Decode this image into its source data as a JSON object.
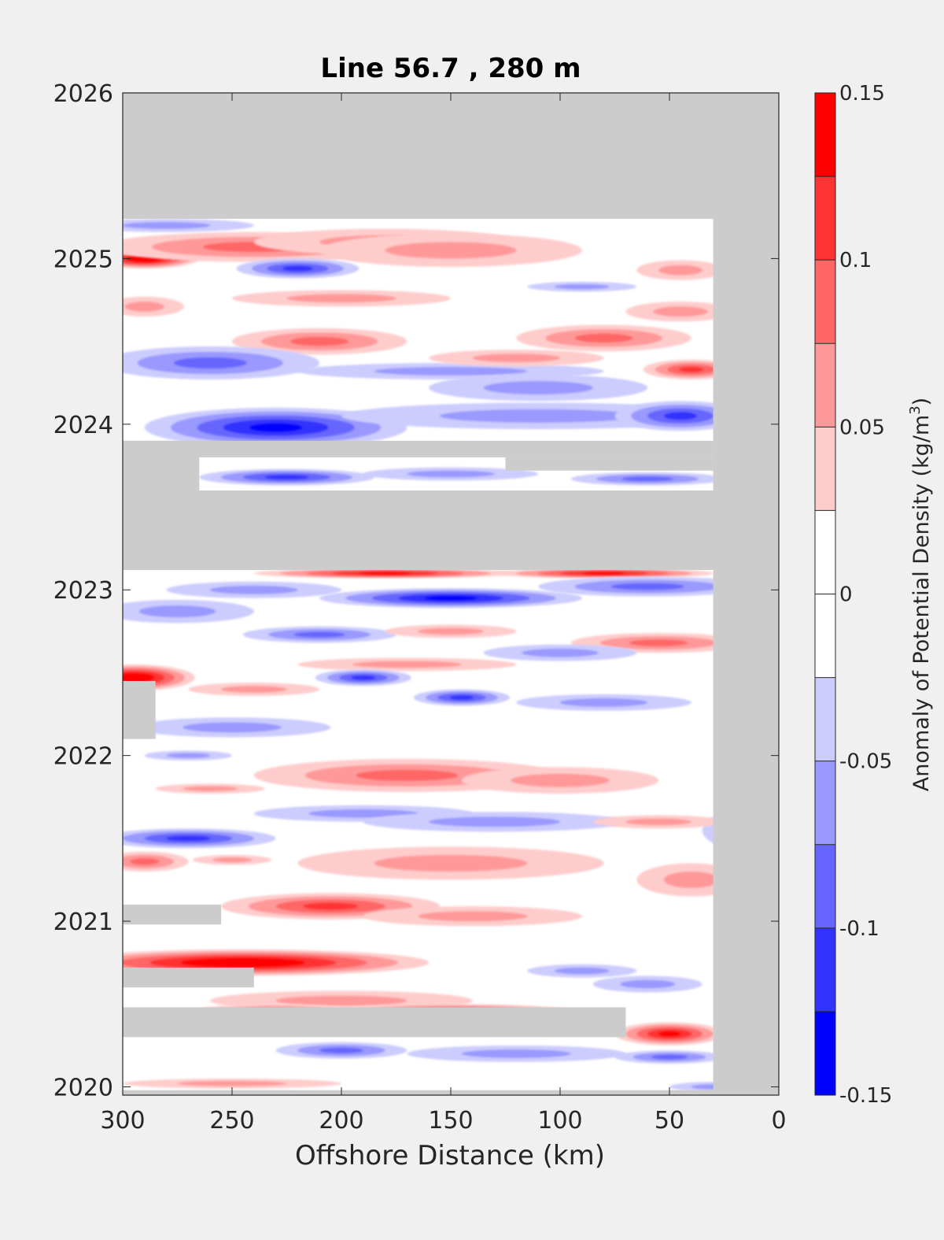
{
  "chart_data": {
    "type": "heatmap",
    "title": "Line 56.7 , 280 m",
    "xlabel": "Offshore Distance (km)",
    "ylabel": "",
    "xlim": [
      300,
      0
    ],
    "ylim": [
      2019.95,
      2026
    ],
    "x_reversed": true,
    "x_ticks": [
      "300",
      "250",
      "200",
      "150",
      "100",
      "50",
      "0"
    ],
    "x_tick_values": [
      300,
      250,
      200,
      150,
      100,
      50,
      0
    ],
    "y_ticks": [
      "2020",
      "2021",
      "2022",
      "2023",
      "2024",
      "2025",
      "2026"
    ],
    "y_tick_values": [
      2020,
      2021,
      2022,
      2023,
      2024,
      2025,
      2026
    ],
    "colorbar": {
      "label": "Anomaly of Potential Density (kg/m3)",
      "label_main": "Anomaly of Potential Density (kg/m",
      "label_sup": "3",
      "label_end": ")",
      "range": [
        -0.15,
        0.15
      ],
      "tick_labels": [
        "0.15",
        "0.1",
        "0.05",
        "0",
        "-0.05",
        "-0.1",
        "-0.15"
      ],
      "tick_values": [
        0.15,
        0.1,
        0.05,
        0,
        -0.05,
        -0.1,
        -0.15
      ],
      "levels": [
        {
          "min": 0.125,
          "max": 0.15,
          "color": "#ff0000"
        },
        {
          "min": 0.1,
          "max": 0.125,
          "color": "#ff3333"
        },
        {
          "min": 0.075,
          "max": 0.1,
          "color": "#ff6666"
        },
        {
          "min": 0.05,
          "max": 0.075,
          "color": "#ff9999"
        },
        {
          "min": 0.025,
          "max": 0.05,
          "color": "#ffcccc"
        },
        {
          "min": 0,
          "max": 0.025,
          "color": "#ffffff"
        },
        {
          "min": -0.025,
          "max": 0,
          "color": "#ffffff"
        },
        {
          "min": -0.05,
          "max": -0.025,
          "color": "#ccccff"
        },
        {
          "min": -0.075,
          "max": -0.05,
          "color": "#9999ff"
        },
        {
          "min": -0.1,
          "max": -0.075,
          "color": "#6666ff"
        },
        {
          "min": -0.125,
          "max": -0.1,
          "color": "#3333ff"
        },
        {
          "min": -0.15,
          "max": -0.125,
          "color": "#0000ff"
        }
      ]
    },
    "no_data_color": "#cccccc",
    "grid": false,
    "features": [
      {
        "x": 290,
        "y": 2025.0,
        "dx": 25,
        "dy": 0.06,
        "v": 0.14
      },
      {
        "x": 240,
        "y": 2025.07,
        "dx": 70,
        "dy": 0.09,
        "v": 0.08
      },
      {
        "x": 180,
        "y": 2025.1,
        "dx": 60,
        "dy": 0.08,
        "v": 0.06
      },
      {
        "x": 150,
        "y": 2025.05,
        "dx": 60,
        "dy": 0.1,
        "v": 0.05
      },
      {
        "x": 280,
        "y": 2025.2,
        "dx": 40,
        "dy": 0.04,
        "v": -0.06
      },
      {
        "x": 220,
        "y": 2024.94,
        "dx": 28,
        "dy": 0.06,
        "v": -0.09
      },
      {
        "x": 90,
        "y": 2024.83,
        "dx": 25,
        "dy": 0.03,
        "v": -0.04
      },
      {
        "x": 45,
        "y": 2024.93,
        "dx": 20,
        "dy": 0.06,
        "v": 0.05
      },
      {
        "x": 290,
        "y": 2024.71,
        "dx": 18,
        "dy": 0.06,
        "v": 0.04
      },
      {
        "x": 200,
        "y": 2024.76,
        "dx": 50,
        "dy": 0.05,
        "v": 0.04
      },
      {
        "x": 210,
        "y": 2024.5,
        "dx": 40,
        "dy": 0.08,
        "v": 0.08
      },
      {
        "x": 80,
        "y": 2024.52,
        "dx": 40,
        "dy": 0.08,
        "v": 0.07
      },
      {
        "x": 45,
        "y": 2024.68,
        "dx": 25,
        "dy": 0.06,
        "v": 0.05
      },
      {
        "x": 40,
        "y": 2024.33,
        "dx": 22,
        "dy": 0.06,
        "v": 0.09
      },
      {
        "x": 260,
        "y": 2024.37,
        "dx": 50,
        "dy": 0.1,
        "v": -0.07
      },
      {
        "x": 150,
        "y": 2024.32,
        "dx": 70,
        "dy": 0.05,
        "v": -0.04
      },
      {
        "x": 110,
        "y": 2024.22,
        "dx": 50,
        "dy": 0.08,
        "v": -0.06
      },
      {
        "x": 120,
        "y": 2024.4,
        "dx": 40,
        "dy": 0.05,
        "v": 0.05
      },
      {
        "x": 230,
        "y": 2023.98,
        "dx": 60,
        "dy": 0.12,
        "v": -0.13
      },
      {
        "x": 110,
        "y": 2024.05,
        "dx": 90,
        "dy": 0.08,
        "v": -0.06
      },
      {
        "x": 45,
        "y": 2024.05,
        "dx": 30,
        "dy": 0.09,
        "v": -0.1
      },
      {
        "x": 225,
        "y": 2023.68,
        "dx": 40,
        "dy": 0.05,
        "v": -0.11
      },
      {
        "x": 60,
        "y": 2023.67,
        "dx": 35,
        "dy": 0.04,
        "v": -0.08
      },
      {
        "x": 150,
        "y": 2023.7,
        "dx": 40,
        "dy": 0.04,
        "v": -0.05
      },
      {
        "x": 180,
        "y": 2023.1,
        "dx": 60,
        "dy": 0.03,
        "v": 0.12
      },
      {
        "x": 80,
        "y": 2023.1,
        "dx": 50,
        "dy": 0.03,
        "v": 0.12
      },
      {
        "x": 150,
        "y": 2022.95,
        "dx": 60,
        "dy": 0.06,
        "v": -0.12
      },
      {
        "x": 60,
        "y": 2023.02,
        "dx": 50,
        "dy": 0.06,
        "v": -0.07
      },
      {
        "x": 240,
        "y": 2023.0,
        "dx": 40,
        "dy": 0.05,
        "v": -0.05
      },
      {
        "x": 275,
        "y": 2022.87,
        "dx": 35,
        "dy": 0.07,
        "v": -0.06
      },
      {
        "x": 210,
        "y": 2022.73,
        "dx": 35,
        "dy": 0.05,
        "v": -0.07
      },
      {
        "x": 150,
        "y": 2022.75,
        "dx": 30,
        "dy": 0.04,
        "v": 0.05
      },
      {
        "x": 55,
        "y": 2022.68,
        "dx": 40,
        "dy": 0.06,
        "v": 0.07
      },
      {
        "x": 100,
        "y": 2022.62,
        "dx": 35,
        "dy": 0.05,
        "v": -0.05
      },
      {
        "x": 170,
        "y": 2022.55,
        "dx": 50,
        "dy": 0.04,
        "v": 0.05
      },
      {
        "x": 295,
        "y": 2022.47,
        "dx": 28,
        "dy": 0.08,
        "v": 0.14
      },
      {
        "x": 240,
        "y": 2022.4,
        "dx": 30,
        "dy": 0.04,
        "v": 0.04
      },
      {
        "x": 190,
        "y": 2022.47,
        "dx": 22,
        "dy": 0.05,
        "v": -0.1
      },
      {
        "x": 145,
        "y": 2022.35,
        "dx": 22,
        "dy": 0.05,
        "v": -0.1
      },
      {
        "x": 80,
        "y": 2022.32,
        "dx": 40,
        "dy": 0.05,
        "v": -0.04
      },
      {
        "x": 250,
        "y": 2022.17,
        "dx": 45,
        "dy": 0.06,
        "v": -0.04
      },
      {
        "x": 270,
        "y": 2022.0,
        "dx": 20,
        "dy": 0.03,
        "v": -0.05
      },
      {
        "x": 170,
        "y": 2021.88,
        "dx": 70,
        "dy": 0.1,
        "v": 0.08
      },
      {
        "x": 100,
        "y": 2021.85,
        "dx": 45,
        "dy": 0.08,
        "v": 0.06
      },
      {
        "x": 260,
        "y": 2021.8,
        "dx": 25,
        "dy": 0.03,
        "v": 0.04
      },
      {
        "x": 15,
        "y": 2021.55,
        "dx": 20,
        "dy": 0.12,
        "v": -0.08
      },
      {
        "x": 270,
        "y": 2021.5,
        "dx": 40,
        "dy": 0.06,
        "v": -0.1
      },
      {
        "x": 190,
        "y": 2021.65,
        "dx": 50,
        "dy": 0.05,
        "v": -0.05
      },
      {
        "x": 130,
        "y": 2021.6,
        "dx": 60,
        "dy": 0.06,
        "v": -0.05
      },
      {
        "x": 55,
        "y": 2021.6,
        "dx": 30,
        "dy": 0.04,
        "v": 0.04
      },
      {
        "x": 150,
        "y": 2021.35,
        "dx": 70,
        "dy": 0.1,
        "v": 0.06
      },
      {
        "x": 40,
        "y": 2021.25,
        "dx": 25,
        "dy": 0.1,
        "v": 0.05
      },
      {
        "x": 290,
        "y": 2021.36,
        "dx": 20,
        "dy": 0.06,
        "v": 0.07
      },
      {
        "x": 250,
        "y": 2021.37,
        "dx": 18,
        "dy": 0.03,
        "v": 0.05
      },
      {
        "x": 205,
        "y": 2021.09,
        "dx": 50,
        "dy": 0.08,
        "v": 0.11
      },
      {
        "x": 140,
        "y": 2021.03,
        "dx": 50,
        "dy": 0.06,
        "v": 0.04
      },
      {
        "x": 245,
        "y": 2020.75,
        "dx": 85,
        "dy": 0.08,
        "v": 0.14
      },
      {
        "x": 60,
        "y": 2020.62,
        "dx": 25,
        "dy": 0.05,
        "v": -0.05
      },
      {
        "x": 90,
        "y": 2020.7,
        "dx": 25,
        "dy": 0.04,
        "v": -0.06
      },
      {
        "x": 200,
        "y": 2020.52,
        "dx": 60,
        "dy": 0.06,
        "v": 0.05
      },
      {
        "x": 150,
        "y": 2020.45,
        "dx": 60,
        "dy": 0.05,
        "v": 0.12
      },
      {
        "x": 230,
        "y": 2020.45,
        "dx": 40,
        "dy": 0.05,
        "v": 0.1
      },
      {
        "x": 50,
        "y": 2020.32,
        "dx": 25,
        "dy": 0.07,
        "v": 0.13
      },
      {
        "x": 200,
        "y": 2020.22,
        "dx": 30,
        "dy": 0.05,
        "v": -0.08
      },
      {
        "x": 120,
        "y": 2020.2,
        "dx": 50,
        "dy": 0.05,
        "v": -0.04
      },
      {
        "x": 50,
        "y": 2020.18,
        "dx": 25,
        "dy": 0.04,
        "v": -0.08
      },
      {
        "x": 250,
        "y": 2020.02,
        "dx": 50,
        "dy": 0.03,
        "v": 0.05
      },
      {
        "x": 30,
        "y": 2020.0,
        "dx": 20,
        "dy": 0.03,
        "v": -0.05
      }
    ],
    "no_data_regions": [
      {
        "x0": 300,
        "x1": 0,
        "y0": 2025.24,
        "y1": 2026.0
      },
      {
        "x0": 30,
        "x1": 0,
        "y0": 2019.95,
        "y1": 2026.0
      },
      {
        "x0": 300,
        "x1": 0,
        "y0": 2023.12,
        "y1": 2023.6
      },
      {
        "x0": 300,
        "x1": 265,
        "y0": 2023.6,
        "y1": 2023.9
      },
      {
        "x0": 300,
        "x1": 30,
        "y0": 2023.8,
        "y1": 2023.9
      },
      {
        "x0": 125,
        "x1": 30,
        "y0": 2023.72,
        "y1": 2023.8
      },
      {
        "x0": 300,
        "x1": 285,
        "y0": 2022.1,
        "y1": 2022.45
      },
      {
        "x0": 300,
        "x1": 255,
        "y0": 2020.98,
        "y1": 2021.1
      },
      {
        "x0": 300,
        "x1": 240,
        "y0": 2020.6,
        "y1": 2020.72
      },
      {
        "x0": 300,
        "x1": 70,
        "y0": 2020.3,
        "y1": 2020.48
      },
      {
        "x0": 300,
        "x1": 0,
        "y0": 2019.95,
        "y1": 2019.98
      }
    ]
  }
}
